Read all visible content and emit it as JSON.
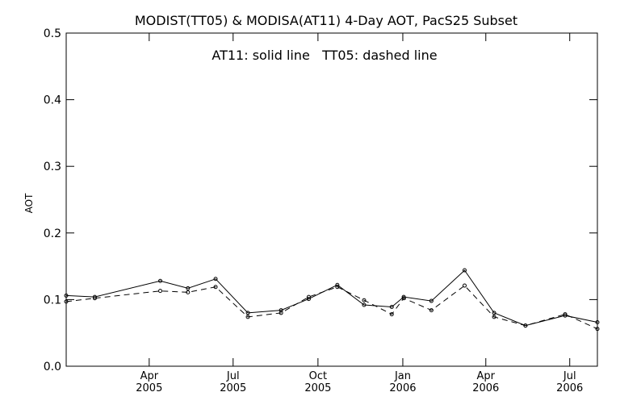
{
  "chart_data": {
    "type": "line",
    "title": "MODIST(TT05) & MODISA(AT11) 4-Day AOT, PacS25 Subset",
    "annotation": "AT11: solid line   TT05: dashed line",
    "ylabel": "AOT",
    "xlabel": "",
    "ylim": [
      0.0,
      0.5
    ],
    "xlim": [
      "2005-01-01",
      "2006-07-31"
    ],
    "y_ticks": [
      "0.0",
      "0.1",
      "0.2",
      "0.3",
      "0.4",
      "0.5"
    ],
    "x_ticks": [
      {
        "date": "2005-04-01",
        "month": "Apr",
        "year": "2005"
      },
      {
        "date": "2005-07-01",
        "month": "Jul",
        "year": "2005"
      },
      {
        "date": "2005-10-01",
        "month": "Oct",
        "year": "2005"
      },
      {
        "date": "2006-01-01",
        "month": "Jan",
        "year": "2006"
      },
      {
        "date": "2006-04-01",
        "month": "Apr",
        "year": "2006"
      },
      {
        "date": "2006-07-01",
        "month": "Jul",
        "year": "2006"
      }
    ],
    "grid": false,
    "x": [
      "2005-01-01",
      "2005-02-01",
      "2005-04-13",
      "2005-05-13",
      "2005-06-12",
      "2005-07-17",
      "2005-08-22",
      "2005-09-21",
      "2005-10-22",
      "2005-11-20",
      "2005-12-20",
      "2006-01-02",
      "2006-02-01",
      "2006-03-09",
      "2006-04-10",
      "2006-05-14",
      "2006-06-26",
      "2006-07-31"
    ],
    "series": [
      {
        "name": "AT11",
        "style": "solid",
        "color": "#000000",
        "values": [
          0.106,
          0.104,
          0.128,
          0.117,
          0.131,
          0.08,
          0.084,
          0.101,
          0.122,
          0.092,
          0.089,
          0.104,
          0.098,
          0.144,
          0.08,
          0.061,
          0.076,
          0.066
        ]
      },
      {
        "name": "TT05",
        "style": "dashed",
        "color": "#000000",
        "values": [
          0.097,
          0.102,
          0.113,
          0.111,
          0.119,
          0.074,
          0.08,
          0.104,
          0.119,
          0.099,
          0.078,
          0.102,
          0.084,
          0.121,
          0.074,
          0.061,
          0.078,
          0.056
        ]
      }
    ]
  }
}
